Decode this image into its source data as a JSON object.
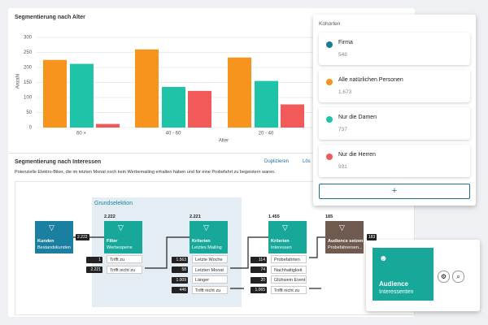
{
  "chart_data": {
    "type": "bar",
    "title": "Segmentierung nach Alter",
    "y_label": "Anzahl",
    "x_label": "Alter",
    "categories": [
      "60 +",
      "40 - 60",
      "20 - 40"
    ],
    "series": [
      {
        "color": "#f7941d",
        "values": [
          225,
          260,
          233
        ]
      },
      {
        "color": "#1fc4a8",
        "values": [
          212,
          135,
          155
        ]
      },
      {
        "color": "#f25a5a",
        "values": [
          12,
          122,
          77
        ]
      }
    ],
    "ylim": [
      0,
      300
    ],
    "yticks": [
      0,
      50,
      100,
      150,
      200,
      250,
      300
    ],
    "grid": true
  },
  "panel": {
    "title": "Kohorten",
    "cohorts": [
      {
        "name": "Firma",
        "count": "548",
        "color": "#1a7c99"
      },
      {
        "name": "Alle natürlichen Personen",
        "count": "1.673",
        "color": "#f7941d"
      },
      {
        "name": "Nur die Damen",
        "count": "737",
        "color": "#1fc4a8"
      },
      {
        "name": "Nur die Herren",
        "count": "931",
        "color": "#f25a5a"
      }
    ],
    "add_button": "+"
  },
  "segment": {
    "title": "Segmentierung nach Interessen",
    "actions": [
      "Duplizieren",
      "Lös"
    ],
    "description": "Potenzielle Elektro-Biker, die im letzten Monat noch kein Werbemailing erhalten haben und für eine Probefahrt zu begeistern waren.",
    "group_label": "Grundselektion",
    "entry_count": "2.222",
    "nodes": [
      {
        "title": "Kunden",
        "subtitle": "Bestandskunden",
        "color": "#1a7fa0"
      },
      {
        "title": "Filter",
        "subtitle": "Werbesperre",
        "color": "#17a89a",
        "count": "2.222",
        "branches": [
          {
            "label": "Trifft zu",
            "count": "1"
          },
          {
            "label": "Trifft nicht zu",
            "count": "2.221"
          }
        ]
      },
      {
        "title": "Kriterien",
        "subtitle": "Letztes Mailing",
        "color": "#17a89a",
        "count": "2.221",
        "branches": [
          {
            "label": "Letzte Woche",
            "count": "1.563"
          },
          {
            "label": "Letzten Monat",
            "count": "58"
          },
          {
            "label": "Länger",
            "count": "1.009"
          },
          {
            "label": "Trifft nicht zu",
            "count": "446"
          }
        ]
      },
      {
        "title": "Kriterien",
        "subtitle": "Interessen",
        "color": "#17a89a",
        "count": "1.455",
        "branches": [
          {
            "label": "Probefahrten",
            "count": "114"
          },
          {
            "label": "Nachhaltigkeit",
            "count": "74"
          },
          {
            "label": "Glühwein Event",
            "count": "20"
          },
          {
            "label": "Trifft nicht zu",
            "count": "1.065"
          }
        ]
      },
      {
        "title": "Audience setzen",
        "subtitle": "Probefahrersen...",
        "color": "#6e5a4f",
        "count": "185",
        "output": "183"
      }
    ]
  },
  "popup": {
    "title": "Audience",
    "subtitle": "Interessenten"
  }
}
